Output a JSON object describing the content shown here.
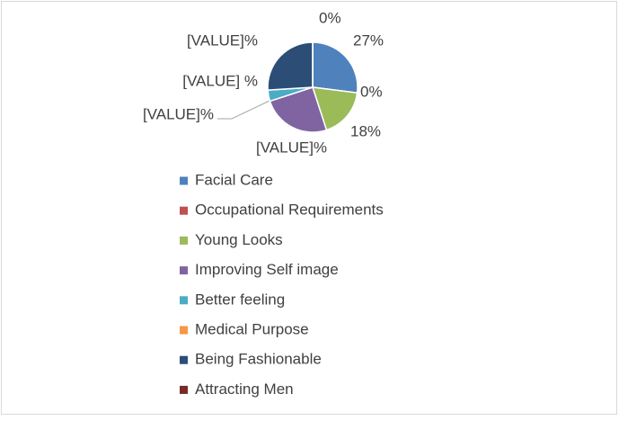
{
  "chart_data": {
    "type": "pie",
    "categories": [
      "Facial Care",
      "Occupational Requirements",
      "Young Looks",
      "Improving Self image",
      "Better feeling",
      "Medical Purpose",
      "Being Fashionable",
      "Attracting Men"
    ],
    "values": [
      27,
      0,
      18,
      25,
      4,
      0,
      26,
      0
    ],
    "value_labels": [
      "27%",
      "0%",
      "18%",
      "[VALUE]%",
      "[VALUE] %",
      "[VALUE]%",
      "[VALUE]%",
      "0%"
    ],
    "colors": [
      "#4f81bd",
      "#c0504d",
      "#9bbb59",
      "#8064a2",
      "#4bacc6",
      "#f79646",
      "#2c4d75",
      "#772c2a"
    ],
    "legend": "bottom"
  }
}
